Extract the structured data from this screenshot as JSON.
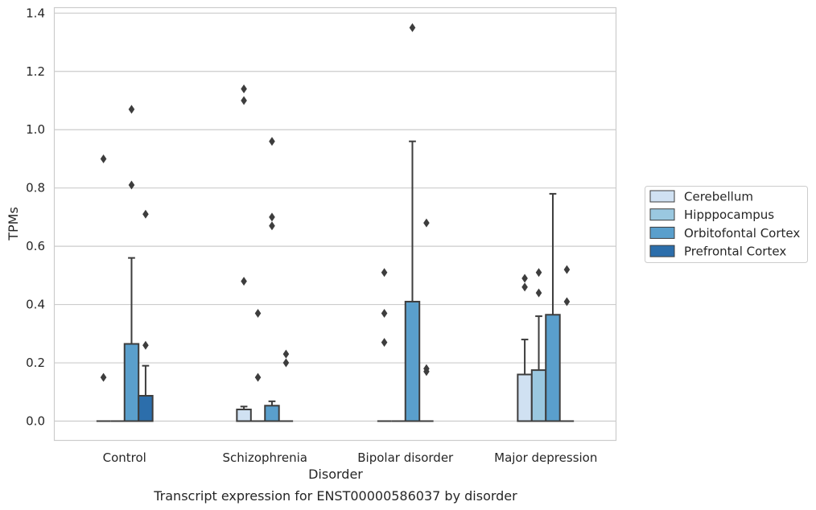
{
  "chart_data": {
    "type": "box",
    "title": "",
    "caption": "Transcript expression for ENST00000586037 by disorder",
    "xlabel": "Disorder",
    "ylabel": "TPMs",
    "ylim": [
      -0.065,
      1.42
    ],
    "yticks": [
      0.0,
      0.2,
      0.4,
      0.6,
      0.8,
      1.0,
      1.2,
      1.4
    ],
    "ytick_labels": [
      "0.0",
      "0.2",
      "0.4",
      "0.6",
      "0.8",
      "1.0",
      "1.2",
      "1.4"
    ],
    "grid": true,
    "legend_position": "right",
    "categories": [
      "Control",
      "Schizophrenia",
      "Bipolar disorder",
      "Major depression"
    ],
    "series": [
      {
        "name": "Cerebellum",
        "color": "#d0e1f2",
        "boxes": [
          {
            "q1": 0,
            "median": 0,
            "q3": 0,
            "whisker_low": 0,
            "whisker_high": 0,
            "outliers": [
              0.15,
              0.9
            ]
          },
          {
            "q1": 0,
            "median": 0,
            "q3": 0.04,
            "whisker_low": 0,
            "whisker_high": 0.05,
            "outliers": [
              0.48,
              1.1,
              1.14
            ]
          },
          {
            "q1": 0,
            "median": 0,
            "q3": 0,
            "whisker_low": 0,
            "whisker_high": 0,
            "outliers": [
              0.27,
              0.37,
              0.51
            ]
          },
          {
            "q1": 0,
            "median": 0,
            "q3": 0.16,
            "whisker_low": 0,
            "whisker_high": 0.28,
            "outliers": [
              0.46,
              0.49
            ]
          }
        ]
      },
      {
        "name": "Hipppocampus",
        "color": "#9ac8e0",
        "boxes": [
          {
            "q1": 0,
            "median": 0,
            "q3": 0,
            "whisker_low": 0,
            "whisker_high": 0,
            "outliers": []
          },
          {
            "q1": 0,
            "median": 0,
            "q3": 0,
            "whisker_low": 0,
            "whisker_high": 0,
            "outliers": [
              0.15,
              0.37
            ]
          },
          {
            "q1": 0,
            "median": 0,
            "q3": 0,
            "whisker_low": 0,
            "whisker_high": 0,
            "outliers": []
          },
          {
            "q1": 0,
            "median": 0,
            "q3": 0.175,
            "whisker_low": 0,
            "whisker_high": 0.36,
            "outliers": [
              0.44,
              0.51
            ]
          }
        ]
      },
      {
        "name": "Orbitofontal Cortex",
        "color": "#5a9fcc",
        "boxes": [
          {
            "q1": 0,
            "median": 0,
            "q3": 0.265,
            "whisker_low": 0,
            "whisker_high": 0.56,
            "outliers": [
              0.81,
              1.07
            ]
          },
          {
            "q1": 0,
            "median": 0,
            "q3": 0.053,
            "whisker_low": 0,
            "whisker_high": 0.068,
            "outliers": [
              0.67,
              0.7,
              0.96
            ]
          },
          {
            "q1": 0,
            "median": 0,
            "q3": 0.41,
            "whisker_low": 0,
            "whisker_high": 0.96,
            "outliers": [
              1.35
            ]
          },
          {
            "q1": 0,
            "median": 0,
            "q3": 0.365,
            "whisker_low": 0,
            "whisker_high": 0.78,
            "outliers": []
          }
        ]
      },
      {
        "name": "Prefrontal Cortex",
        "color": "#2c6eab",
        "boxes": [
          {
            "q1": 0,
            "median": 0,
            "q3": 0.087,
            "whisker_low": 0,
            "whisker_high": 0.19,
            "outliers": [
              0.26,
              0.71
            ]
          },
          {
            "q1": 0,
            "median": 0,
            "q3": 0,
            "whisker_low": 0,
            "whisker_high": 0,
            "outliers": [
              0.2,
              0.23
            ]
          },
          {
            "q1": 0,
            "median": 0,
            "q3": 0,
            "whisker_low": 0,
            "whisker_high": 0,
            "outliers": [
              0.17,
              0.18,
              0.68
            ]
          },
          {
            "q1": 0,
            "median": 0,
            "q3": 0,
            "whisker_low": 0,
            "whisker_high": 0,
            "outliers": [
              0.41,
              0.52
            ]
          }
        ]
      }
    ]
  }
}
